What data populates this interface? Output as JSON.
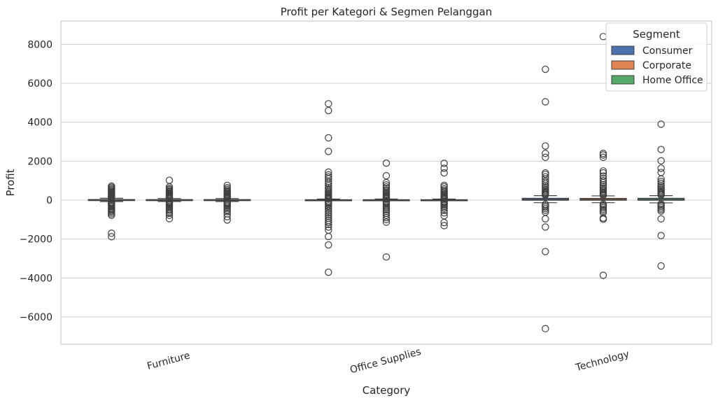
{
  "chart_data": {
    "type": "box",
    "title": "Profit per Kategori & Segmen Pelanggan",
    "xlabel": "Category",
    "ylabel": "Profit",
    "categories": [
      "Furniture",
      "Office Supplies",
      "Technology"
    ],
    "ylim": [
      -7400,
      9200
    ],
    "yticks": [
      -6000,
      -4000,
      -2000,
      0,
      2000,
      4000,
      6000,
      8000
    ],
    "ytick_labels": [
      "−6000",
      "−4000",
      "−2000",
      "0",
      "2000",
      "4000",
      "6000",
      "8000"
    ],
    "grid": "y",
    "legend": {
      "title": "Segment",
      "placement": "top-right"
    },
    "series": [
      {
        "name": "Consumer",
        "color": "#4c72b0",
        "boxes": [
          {
            "q1": -12,
            "median": 9,
            "q3": 31,
            "whisker_low": -75,
            "whisker_high": 95,
            "outliers": [
              -1880,
              -1700,
              -780,
              -700,
              -620,
              -560,
              -500,
              -440,
              -380,
              -320,
              -270,
              -230,
              -190,
              -150,
              -120,
              110,
              140,
              170,
              200,
              240,
              280,
              320,
              360,
              400,
              440,
              490,
              540,
              600,
              660,
              720
            ]
          },
          {
            "q1": -2,
            "median": 7,
            "q3": 22,
            "whisker_low": -30,
            "whisker_high": 55,
            "outliers": [
              -3700,
              -2300,
              -1870,
              -1540,
              -1380,
              -1250,
              -1150,
              -1050,
              -940,
              -840,
              -760,
              -660,
              -560,
              -460,
              -380,
              -300,
              -220,
              -160,
              -110,
              -80,
              80,
              110,
              150,
              200,
              250,
              300,
              360,
              420,
              500,
              580,
              660,
              760,
              860,
              960,
              1100,
              1200,
              1300,
              1440,
              2500,
              3200,
              4600,
              4950
            ]
          },
          {
            "q1": -5,
            "median": 30,
            "q3": 95,
            "whisker_low": -130,
            "whisker_high": 230,
            "outliers": [
              -6600,
              -2640,
              -1380,
              -960,
              -620,
              -520,
              -430,
              -350,
              -280,
              -210,
              260,
              300,
              350,
              400,
              460,
              520,
              600,
              680,
              760,
              860,
              960,
              1080,
              1200,
              1320,
              1400,
              2200,
              2400,
              2780,
              5050,
              6720
            ]
          }
        ]
      },
      {
        "name": "Corporate",
        "color": "#dd8452",
        "boxes": [
          {
            "q1": -10,
            "median": 8,
            "q3": 28,
            "whisker_low": -70,
            "whisker_high": 85,
            "outliers": [
              -950,
              -780,
              -680,
              -600,
              -520,
              -450,
              -380,
              -320,
              -260,
              -210,
              -160,
              -120,
              -90,
              100,
              130,
              160,
              200,
              240,
              280,
              330,
              380,
              430,
              480,
              540,
              600,
              680,
              1020
            ]
          },
          {
            "q1": -2,
            "median": 7,
            "q3": 22,
            "whisker_low": -30,
            "whisker_high": 55,
            "outliers": [
              -2920,
              -1130,
              -1000,
              -900,
              -780,
              -680,
              -580,
              -500,
              -420,
              -340,
              -270,
              -200,
              -150,
              -100,
              -70,
              70,
              100,
              140,
              180,
              230,
              280,
              330,
              390,
              450,
              520,
              600,
              680,
              780,
              900,
              1250,
              1900
            ]
          },
          {
            "q1": -5,
            "median": 30,
            "q3": 90,
            "whisker_low": -130,
            "whisker_high": 220,
            "outliers": [
              -3860,
              -980,
              -920,
              -640,
              -560,
              -480,
              -400,
              -330,
              -260,
              -200,
              250,
              300,
              350,
              410,
              470,
              540,
              620,
              700,
              800,
              900,
              1000,
              1100,
              1240,
              1400,
              1500,
              2200,
              2320,
              2400,
              8400
            ]
          }
        ]
      },
      {
        "name": "Home Office",
        "color": "#55a868",
        "boxes": [
          {
            "q1": -10,
            "median": 8,
            "q3": 28,
            "whisker_low": -70,
            "whisker_high": 85,
            "outliers": [
              -1020,
              -850,
              -700,
              -590,
              -500,
              -420,
              -350,
              -290,
              -230,
              -180,
              -140,
              -100,
              100,
              130,
              160,
              200,
              240,
              280,
              330,
              380,
              430,
              490,
              560,
              640,
              760
            ]
          },
          {
            "q1": -2,
            "median": 7,
            "q3": 22,
            "whisker_low": -30,
            "whisker_high": 55,
            "outliers": [
              -1310,
              -1150,
              -800,
              -650,
              -520,
              -420,
              -340,
              -270,
              -210,
              -160,
              -110,
              -75,
              75,
              110,
              150,
              200,
              250,
              300,
              360,
              420,
              500,
              580,
              680,
              760,
              1400,
              1640,
              1890
            ]
          },
          {
            "q1": -5,
            "median": 30,
            "q3": 95,
            "whisker_low": -140,
            "whisker_high": 230,
            "outliers": [
              -3380,
              -1820,
              -960,
              -560,
              -480,
              -400,
              -320,
              -250,
              -190,
              260,
              300,
              350,
              400,
              460,
              520,
              600,
              680,
              760,
              860,
              960,
              1080,
              1420,
              1640,
              2020,
              2600,
              3900
            ]
          }
        ]
      }
    ]
  }
}
